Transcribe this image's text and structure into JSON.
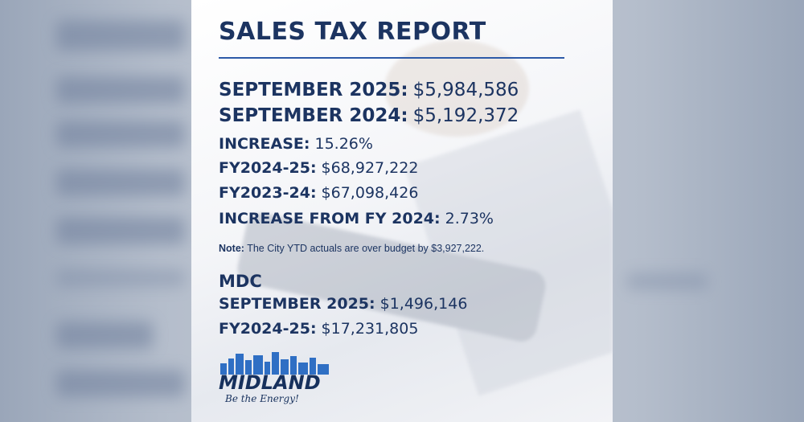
{
  "header": {
    "title": "SALES TAX REPORT"
  },
  "items": [
    {
      "label": "SEPTEMBER 2025:",
      "value": "$5,984,586"
    },
    {
      "label": "SEPTEMBER 2024:",
      "value": "$5,192,372"
    },
    {
      "label": "INCREASE:",
      "value": "15.26%"
    },
    {
      "label": "FY2024-25:",
      "value": "$68,927,222"
    },
    {
      "label": "FY2023-24:",
      "value": "$67,098,426"
    },
    {
      "label": "INCREASE FROM FY 2024:",
      "value": "2.73%"
    }
  ],
  "note": {
    "label": "Note:",
    "text": "The City YTD actuals are over budget by $3,927,222."
  },
  "mdc": {
    "title": "MDC",
    "items": [
      {
        "label": "SEPTEMBER 2025:",
        "value": "$1,496,146"
      },
      {
        "label": "FY2024-25:",
        "value": "$17,231,805"
      }
    ]
  },
  "logo": {
    "name": "MIDLAND",
    "tagline": "Be the Energy!"
  }
}
